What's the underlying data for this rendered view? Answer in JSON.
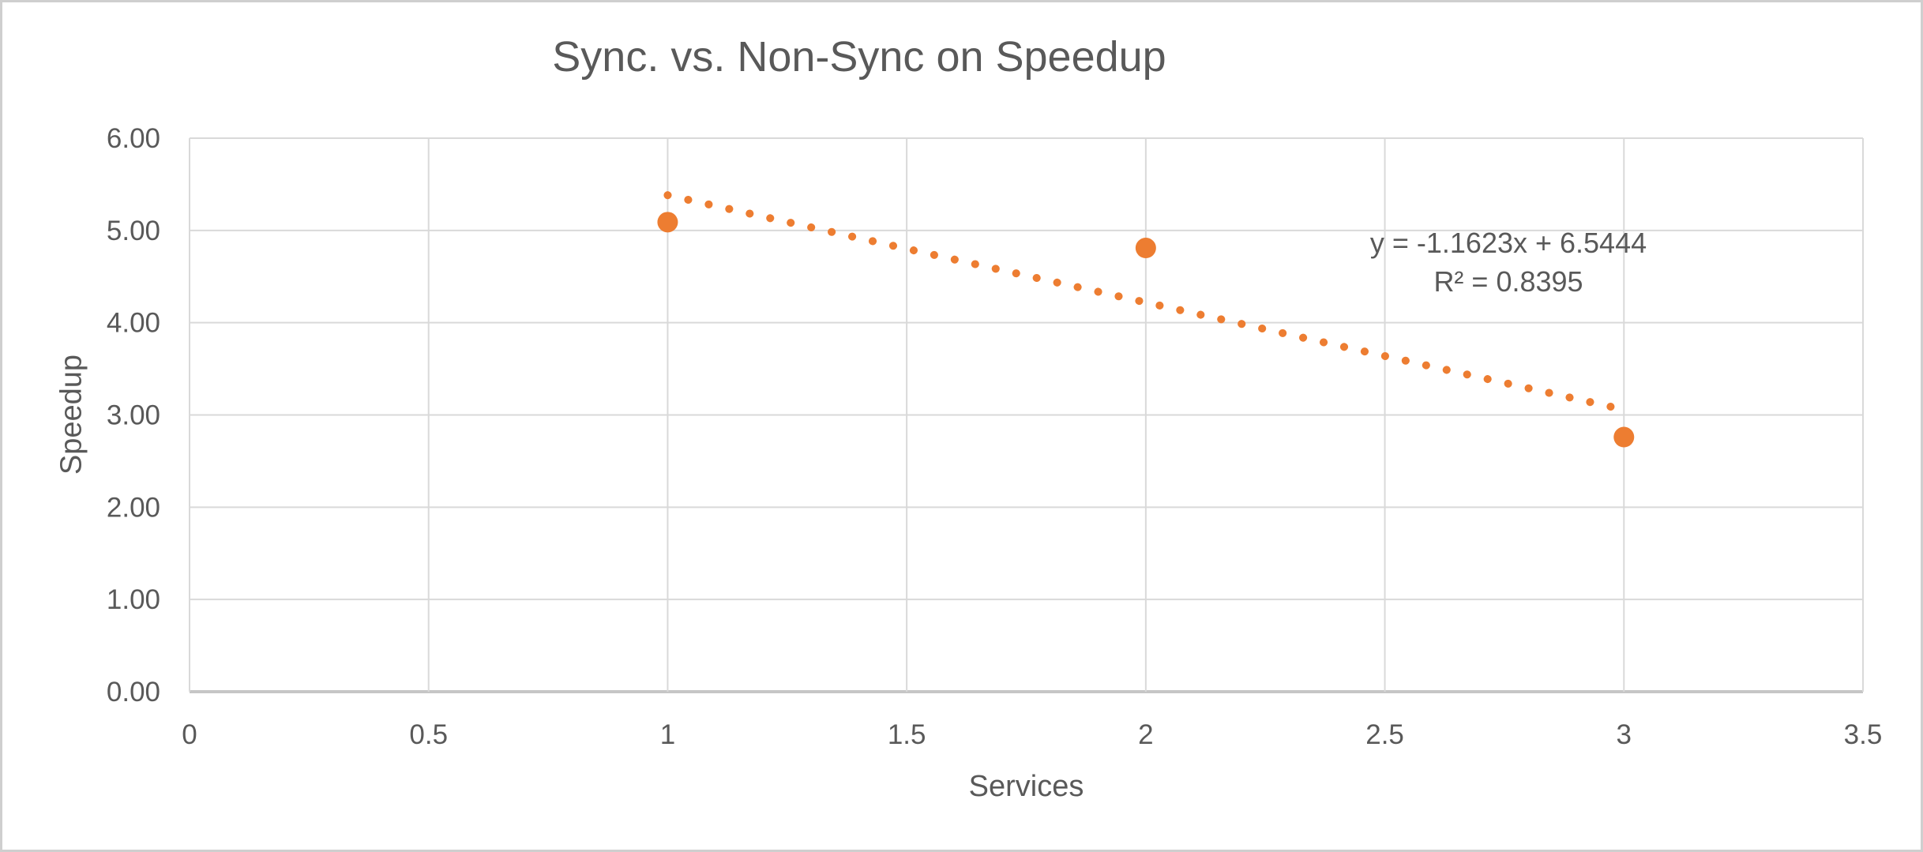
{
  "window": {
    "background_color": "#ffffff",
    "border_color": "#cfcfcf"
  },
  "chart_data": {
    "type": "scatter",
    "title": "Sync. vs. Non-Sync on Speedup",
    "xlabel": "Services",
    "ylabel": "Speedup",
    "x": [
      1,
      2,
      3
    ],
    "y": [
      5.09,
      4.81,
      2.76
    ],
    "xlim": [
      0,
      3.5
    ],
    "ylim": [
      0,
      6
    ],
    "x_tick_labels": [
      "0",
      "0.5",
      "1",
      "1.5",
      "2",
      "2.5",
      "3",
      "3.5"
    ],
    "y_tick_labels": [
      "0.00",
      "1.00",
      "2.00",
      "3.00",
      "4.00",
      "5.00",
      "6.00"
    ],
    "grid": true,
    "legend": "none",
    "trendline": {
      "slope": -1.1623,
      "intercept": 6.5444,
      "x_start": 1,
      "x_end": 3,
      "style": "dotted",
      "equation_label": "y = -1.1623x + 6.5444",
      "r_squared_label": "R² = 0.8395"
    },
    "colors": {
      "marker": "#ED7D31",
      "trendline": "#ED7D31",
      "gridline": "#D9D9D9",
      "axis_line": "#C6C6C6",
      "text": "#595959"
    }
  }
}
